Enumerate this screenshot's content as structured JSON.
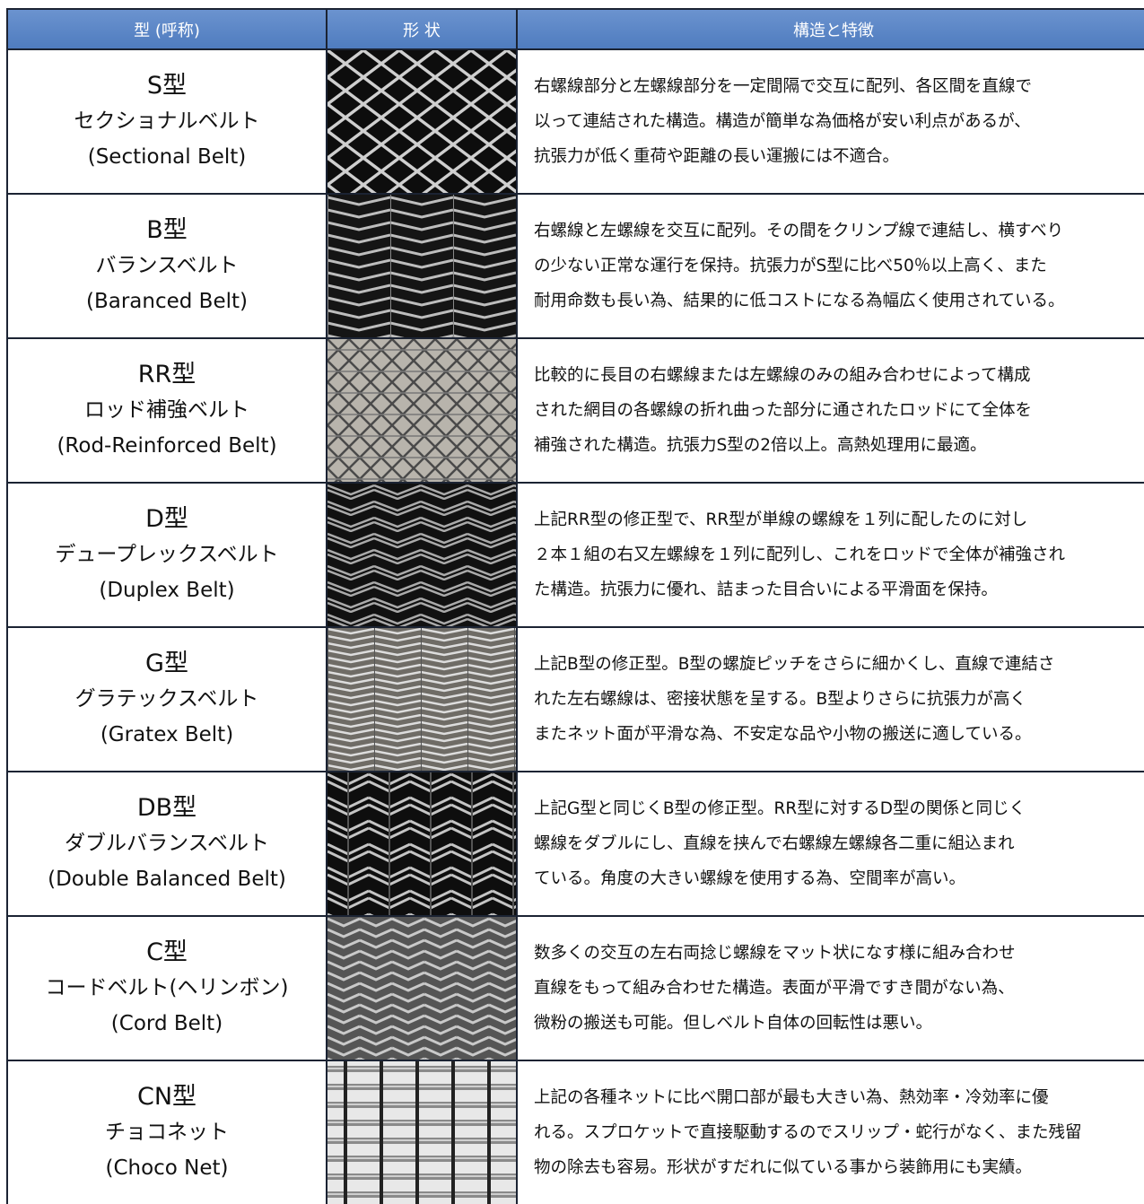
{
  "table": {
    "header": [
      "型 (呼称)",
      "形 状",
      "構造と特徴"
    ],
    "rows": [
      {
        "type": "S型",
        "name": "セクショナルベルト",
        "english": "(Sectional Belt)",
        "description": [
          "右螺線部分と左螺線部分を一定間隔で交互に配列、各区間を直線で",
          "以って連結された構造。構造が簡単な為価格が安い利点があるが、",
          "抗張力が低く重荷や距離の長い運搬には不適合。"
        ]
      },
      {
        "type": "B型",
        "name": "バランスベルト",
        "english": "(Baranced Belt)",
        "description": [
          "右螺線と左螺線を交互に配列。その間をクリンプ線で連結し、横すべり",
          "の少ない正常な運行を保持。抗張力がS型に比べ50％以上高く、また",
          "耐用命数も長い為、結果的に低コストになる為幅広く使用されている。"
        ]
      },
      {
        "type": "RR型",
        "name": "ロッド補強ベルト",
        "english": "(Rod-Reinforced Belt)",
        "description": [
          "比較的に長目の右螺線または左螺線のみの組み合わせによって構成",
          "された網目の各螺線の折れ曲った部分に通されたロッドにて全体を",
          "補強された構造。抗張力S型の2倍以上。高熱処理用に最適。"
        ]
      },
      {
        "type": "D型",
        "name": "デュープレックスベルト",
        "english": "(Duplex Belt)",
        "description": [
          "上記RR型の修正型で、RR型が単線の螺線を１列に配したのに対し",
          "２本１組の右又左螺線を１列に配列し、これをロッドで全体が補強され",
          "た構造。抗張力に優れ、詰まった目合いによる平滑面を保持。"
        ]
      },
      {
        "type": "G型",
        "name": "グラテックスベルト",
        "english": "(Gratex Belt)",
        "description": [
          "上記B型の修正型。B型の螺旋ピッチをさらに細かくし、直線で連結さ",
          "れた左右螺線は、密接状態を呈する。B型よりさらに抗張力が高く",
          "またネット面が平滑な為、不安定な品や小物の搬送に適している。"
        ]
      },
      {
        "type": "DB型",
        "name": "ダブルバランスベルト",
        "english": "(Double Balanced Belt)",
        "description": [
          "上記G型と同じくB型の修正型。RR型に対するD型の関係と同じく",
          "螺線をダブルにし、直線を挟んで右螺線左螺線各二重に組込まれ",
          "ている。角度の大きい螺線を使用する為、空間率が高い。"
        ]
      },
      {
        "type": "C型",
        "name": "コードベルト(ヘリンボン)",
        "english": "(Cord Belt)",
        "description": [
          "数多くの交互の左右両捻じ螺線をマット状になす様に組み合わせ",
          "直線をもって組み合わせた構造。表面が平滑ですき間がない為、",
          "微粉の搬送も可能。但しベルト自体の回転性は悪い。"
        ]
      },
      {
        "type": "CN型",
        "name": "チョコネット",
        "english": "(Choco Net)",
        "description": [
          "上記の各種ネットに比べ開口部が最も大きい為、熱効率・冷効率に優",
          "れる。スプロケットで直接駆動するのでスリップ・蛇行がなく、また残留",
          "物の除去も容易。形状がすだれに似ている事から装飾用にも実績。"
        ]
      }
    ]
  }
}
